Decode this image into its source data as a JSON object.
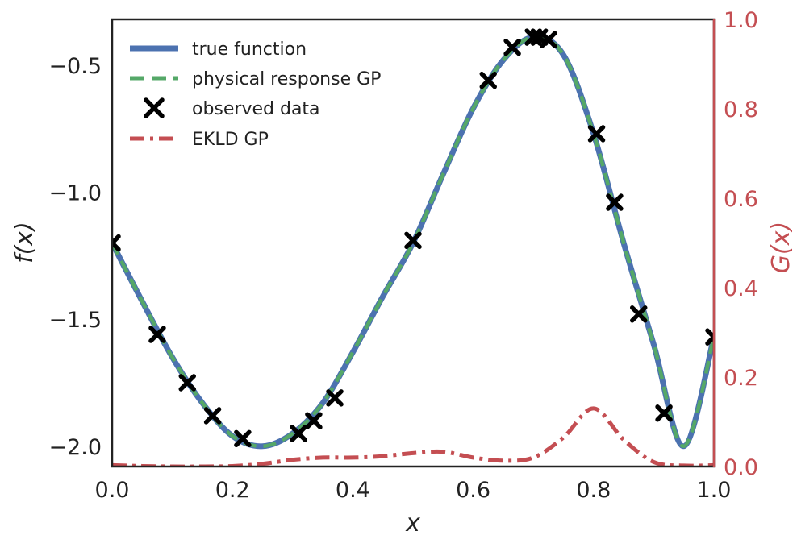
{
  "chart_data": {
    "type": "line",
    "xlabel": "x",
    "ylabel": "f(x)",
    "y2label": "G(x)",
    "xlim": [
      0.0,
      1.0
    ],
    "ylim": [
      -2.08,
      -0.32
    ],
    "y2lim": [
      0.0,
      1.0
    ],
    "xticks": [
      "0.0",
      "0.2",
      "0.4",
      "0.6",
      "0.8",
      "1.0"
    ],
    "yticks": [
      "−2.0",
      "−1.5",
      "−1.0",
      "−0.5"
    ],
    "y2ticks": [
      "0.0",
      "0.2",
      "0.4",
      "0.6",
      "0.8",
      "1.0"
    ],
    "grid": false,
    "legend_position": "top-left",
    "legend": [
      "true function",
      "physical response GP",
      "observed data",
      "EKLD GP"
    ],
    "colors": {
      "true_function": "#4c72b0",
      "physical_gp": "#55a868",
      "observed": "#000000",
      "ekld": "#c44e52",
      "axes": "#222222"
    },
    "true_function": {
      "x": [
        0.0,
        0.05,
        0.1,
        0.15,
        0.2,
        0.25,
        0.3,
        0.35,
        0.4,
        0.45,
        0.5,
        0.55,
        0.6,
        0.65,
        0.7,
        0.75,
        0.8,
        0.85,
        0.9,
        0.95,
        1.0
      ],
      "y": [
        -1.2,
        -1.43,
        -1.65,
        -1.83,
        -1.96,
        -2.0,
        -1.95,
        -1.83,
        -1.63,
        -1.41,
        -1.2,
        -0.93,
        -0.67,
        -0.48,
        -0.39,
        -0.46,
        -0.77,
        -1.2,
        -1.6,
        -2.0,
        -1.57
      ]
    },
    "physical_gp": {
      "x": [
        0.0,
        0.05,
        0.1,
        0.15,
        0.2,
        0.25,
        0.3,
        0.35,
        0.4,
        0.45,
        0.5,
        0.55,
        0.6,
        0.65,
        0.7,
        0.75,
        0.8,
        0.85,
        0.9,
        0.95,
        1.0
      ],
      "y": [
        -1.2,
        -1.43,
        -1.65,
        -1.83,
        -1.96,
        -2.0,
        -1.95,
        -1.83,
        -1.63,
        -1.41,
        -1.2,
        -0.93,
        -0.67,
        -0.48,
        -0.39,
        -0.46,
        -0.77,
        -1.2,
        -1.6,
        -2.0,
        -1.57
      ]
    },
    "observed_data": {
      "x": [
        0.0,
        0.075,
        0.125,
        0.167,
        0.217,
        0.31,
        0.335,
        0.37,
        0.5,
        0.625,
        0.665,
        0.7,
        0.71,
        0.725,
        0.805,
        0.835,
        0.875,
        0.917,
        1.0
      ],
      "y": [
        -1.2,
        -1.56,
        -1.75,
        -1.88,
        -1.97,
        -1.95,
        -1.9,
        -1.81,
        -1.19,
        -0.56,
        -0.43,
        -0.39,
        -0.39,
        -0.4,
        -0.77,
        -1.04,
        -1.48,
        -1.87,
        -1.57
      ]
    },
    "ekld_gp": {
      "x": [
        0.0,
        0.05,
        0.1,
        0.15,
        0.2,
        0.25,
        0.3,
        0.35,
        0.4,
        0.45,
        0.5,
        0.55,
        0.6,
        0.65,
        0.7,
        0.75,
        0.8,
        0.85,
        0.9,
        0.95,
        1.0
      ],
      "y": [
        0.003,
        0.001,
        0.0,
        0.0,
        0.001,
        0.006,
        0.015,
        0.02,
        0.02,
        0.023,
        0.03,
        0.033,
        0.02,
        0.013,
        0.02,
        0.065,
        0.13,
        0.06,
        0.01,
        0.002,
        0.003
      ]
    }
  }
}
